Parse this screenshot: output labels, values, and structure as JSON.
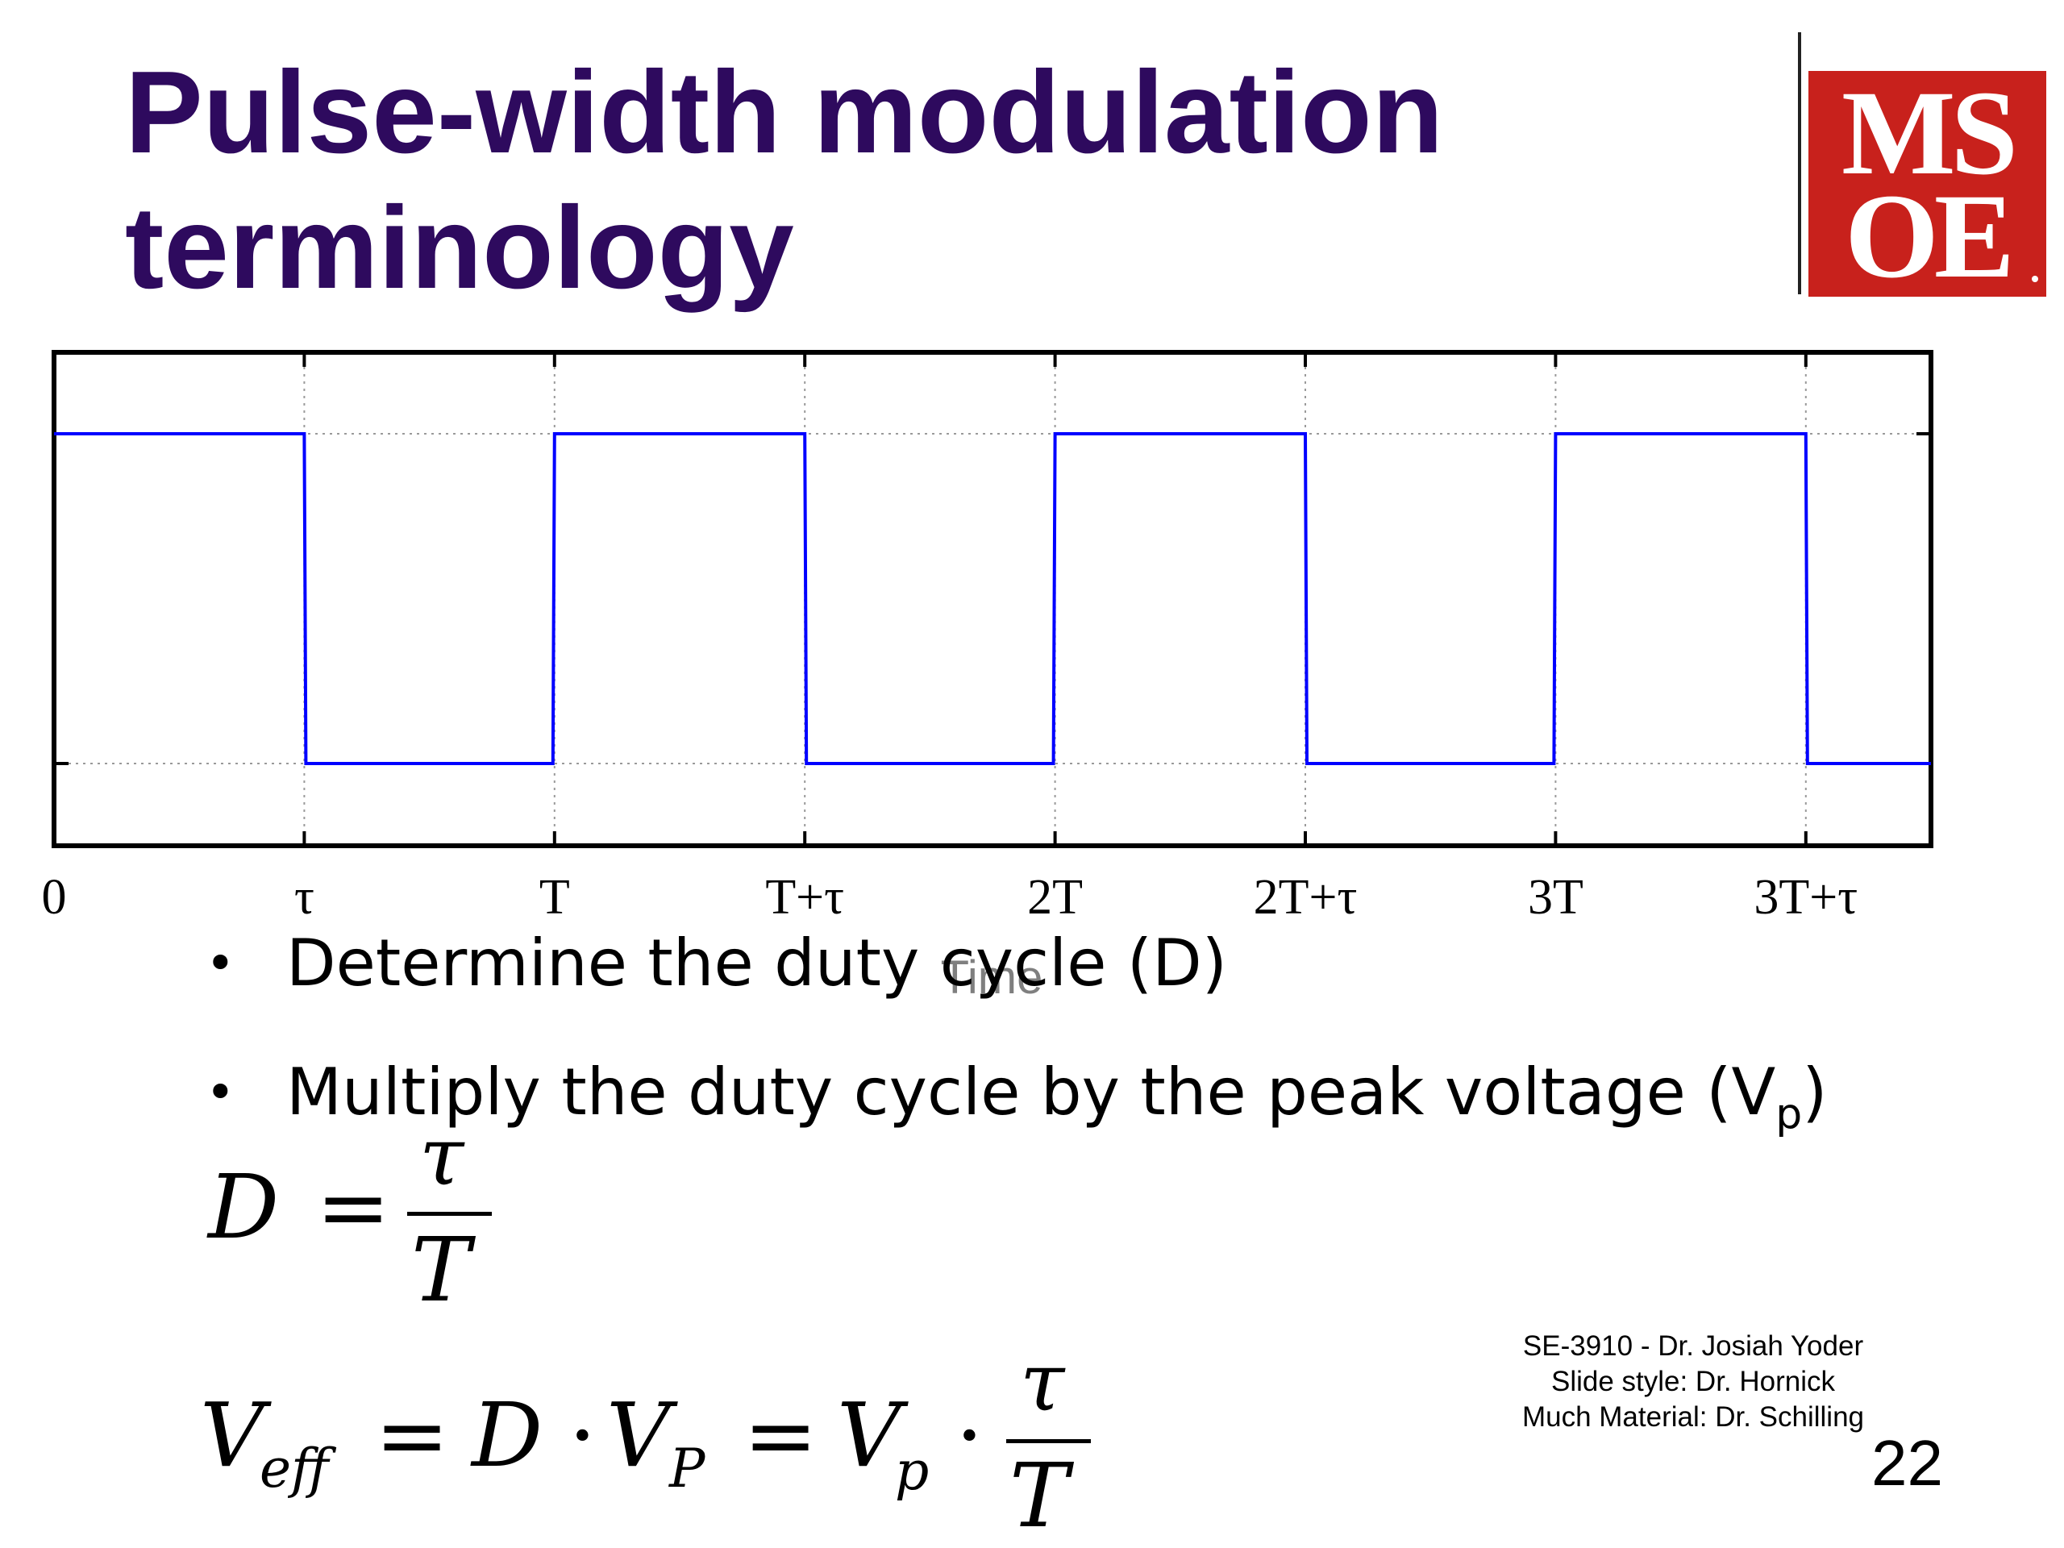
{
  "slide": {
    "title_line1": "Pulse-width modulation",
    "title_line2": "terminology",
    "logo_line1": "MS",
    "logo_line2": "OE"
  },
  "chart_data": {
    "type": "line",
    "xlabel": "Time",
    "ylabel": "",
    "tick_labels": [
      "0",
      "τ",
      "T",
      "T+τ",
      "2T",
      "2T+τ",
      "3T",
      "3T+τ"
    ],
    "tick_positions_in_periods": [
      0,
      0.5,
      1,
      1.5,
      2,
      2.5,
      3,
      3.5
    ],
    "period": 1,
    "duty_cycle": 0.5,
    "xlim": [
      0,
      3.75
    ],
    "levels": [
      "low",
      "high"
    ],
    "grid": true,
    "line_color": "#0000ff"
  },
  "bullets": [
    {
      "text": "Determine the duty cycle (D)",
      "sub": "",
      "tail": ""
    },
    {
      "text": "Multiply the duty cycle by the peak voltage (V",
      "sub": "p",
      "tail": ")"
    }
  ],
  "equations": {
    "d_lhs": "D",
    "d_eq": "=",
    "d_num": "τ",
    "d_den": "T",
    "v_lhs": "V",
    "v_lhs_sub": "eff",
    "v_eq1": "=",
    "v_d": "D",
    "v_dot1": "·",
    "v_vp": "V",
    "v_vp_sub": "P",
    "v_eq2": "=",
    "v_vp2": "V",
    "v_vp2_sub": "p",
    "v_dot2": "·",
    "v_num": "τ",
    "v_den": "T"
  },
  "footer": {
    "course": "SE-3910  - Dr. Josiah Yoder",
    "style": "Slide style: Dr. Hornick",
    "material": "Much Material: Dr. Schilling"
  },
  "page_number": "22"
}
